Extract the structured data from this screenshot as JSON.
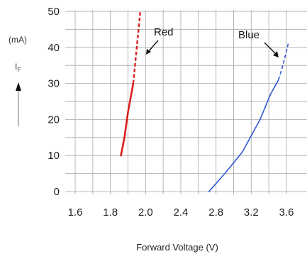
{
  "chart_data": {
    "type": "line",
    "title": "",
    "xlabel": "Forward Voltage (V)",
    "ylabel_symbol": "I",
    "ylabel_subscript": "F",
    "ylabel_unit": "(mA)",
    "xlim": [
      1.6,
      3.75
    ],
    "ylim": [
      0,
      50
    ],
    "x_ticks": [
      "1.6",
      "1.8",
      "2.0",
      "2.4",
      "2.8",
      "3.2",
      "3.6"
    ],
    "y_ticks": [
      "0",
      "10",
      "20",
      "30",
      "40",
      "50"
    ],
    "grid": true,
    "series": [
      {
        "name": "Red",
        "color": "#dd1f1f",
        "solid": [
          [
            1.86,
            10
          ],
          [
            1.88,
            15
          ],
          [
            1.9,
            22
          ],
          [
            1.93,
            30
          ]
        ],
        "dashed": [
          [
            1.93,
            30
          ],
          [
            1.95,
            40
          ],
          [
            1.97,
            50
          ]
        ]
      },
      {
        "name": "Blue",
        "color": "#2f57d6",
        "solid": [
          [
            2.72,
            0
          ],
          [
            2.9,
            5
          ],
          [
            3.1,
            11
          ],
          [
            3.3,
            20
          ],
          [
            3.42,
            27
          ],
          [
            3.51,
            31
          ]
        ],
        "dashed": [
          [
            3.51,
            31
          ],
          [
            3.56,
            35
          ],
          [
            3.62,
            41
          ]
        ]
      }
    ]
  }
}
